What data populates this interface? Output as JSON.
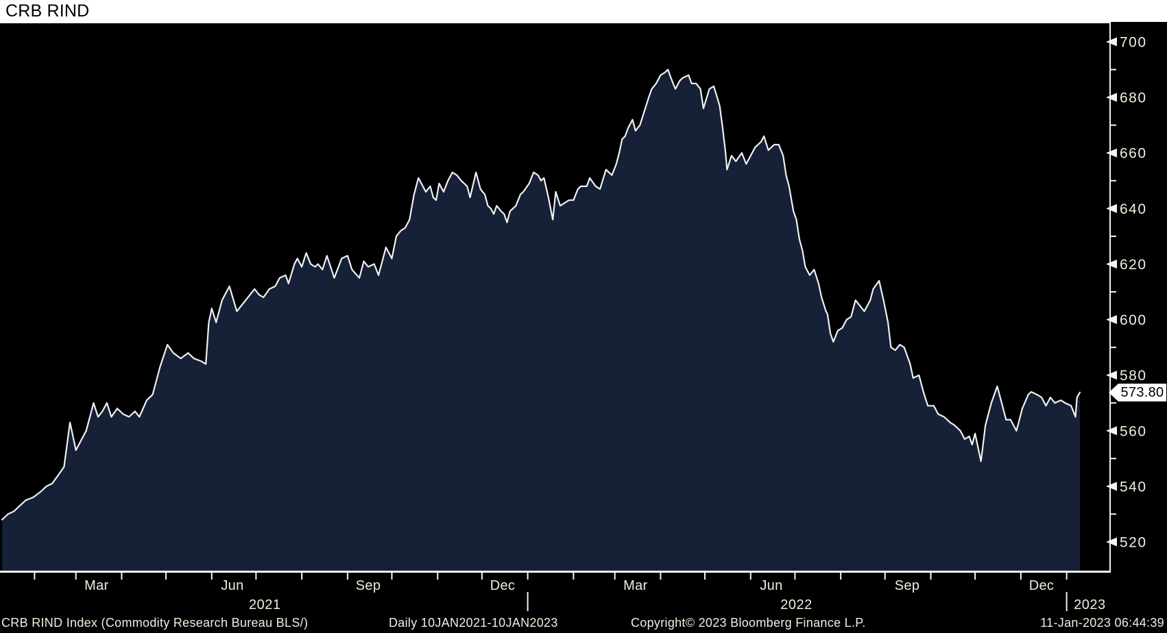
{
  "title": "CRB RIND",
  "colors": {
    "background": "#000000",
    "header_bg": "#ffffff",
    "title_text": "#000000",
    "area_fill": "#162137",
    "line": "#eef1f6",
    "axis": "#f4f4f4",
    "label_text": "#f2edde",
    "tag_bg": "#ffffff",
    "tag_text": "#000000"
  },
  "y_axis": {
    "label_min": 520,
    "label_max": 700,
    "major_step": 20,
    "minor_step": 10,
    "last_price_label": "573.80"
  },
  "x_axis": {
    "month_tick_days": [
      22,
      50,
      81,
      111,
      142,
      172,
      203,
      234,
      264,
      295,
      325,
      356,
      387,
      415,
      446,
      476,
      507,
      537,
      568,
      598,
      629,
      659,
      690,
      721
    ],
    "year_divider_days": [
      356,
      721
    ],
    "month_labels": [
      {
        "text": "Mar",
        "day": 64
      },
      {
        "text": "Jun",
        "day": 156
      },
      {
        "text": "Sep",
        "day": 248
      },
      {
        "text": "Dec",
        "day": 339
      },
      {
        "text": "Mar",
        "day": 429
      },
      {
        "text": "Jun",
        "day": 521
      },
      {
        "text": "Sep",
        "day": 613
      },
      {
        "text": "Dec",
        "day": 704
      }
    ],
    "year_labels": [
      {
        "text": "2021",
        "day": 178,
        "align": "middle"
      },
      {
        "text": "2022",
        "day": 538,
        "align": "middle"
      },
      {
        "text": "2023",
        "day": 724,
        "align": "start"
      }
    ]
  },
  "footer": {
    "description": "CRB RIND Index (Commodity Research Bureau BLS/)",
    "range": "Daily 10JAN2021-10JAN2023",
    "copyright": "Copyright© 2023 Bloomberg Finance L.P.",
    "timestamp": "11-Jan-2023 06:44:39"
  },
  "chart_data": {
    "type": "area",
    "title": "CRB RIND",
    "series_name": "CRB RIND Index (Commodity Research Bureau BLS/)",
    "frequency": "daily",
    "start_date": "2021-01-10",
    "end_date": "2023-01-10",
    "last_value": 573.8,
    "ylim": [
      509,
      707
    ],
    "yticks": [
      520,
      540,
      560,
      580,
      600,
      620,
      640,
      660,
      680,
      700
    ],
    "legend": "none",
    "grid": "off",
    "points_format": "[day_offset_from_2021-01-10, index_value]",
    "points": [
      [
        0,
        528
      ],
      [
        4,
        530
      ],
      [
        8,
        531
      ],
      [
        12,
        533
      ],
      [
        16,
        535
      ],
      [
        21,
        536
      ],
      [
        26,
        538
      ],
      [
        30,
        540
      ],
      [
        34,
        541
      ],
      [
        38,
        544
      ],
      [
        42,
        547
      ],
      [
        46,
        563
      ],
      [
        50,
        553
      ],
      [
        53,
        556
      ],
      [
        57,
        560
      ],
      [
        62,
        570
      ],
      [
        65,
        565
      ],
      [
        68,
        567
      ],
      [
        71,
        570
      ],
      [
        74,
        565
      ],
      [
        78,
        568
      ],
      [
        82,
        566
      ],
      [
        86,
        565
      ],
      [
        90,
        567
      ],
      [
        93,
        565
      ],
      [
        98,
        571
      ],
      [
        102,
        573
      ],
      [
        107,
        583
      ],
      [
        112,
        591
      ],
      [
        116,
        588
      ],
      [
        121,
        586
      ],
      [
        126,
        588
      ],
      [
        130,
        586
      ],
      [
        135,
        585
      ],
      [
        138,
        584
      ],
      [
        140,
        599
      ],
      [
        142,
        604
      ],
      [
        145,
        599
      ],
      [
        149,
        607
      ],
      [
        154,
        612
      ],
      [
        159,
        603
      ],
      [
        162,
        605
      ],
      [
        165,
        607
      ],
      [
        168,
        609
      ],
      [
        171,
        611
      ],
      [
        174,
        609
      ],
      [
        177,
        608
      ],
      [
        181,
        611
      ],
      [
        185,
        612
      ],
      [
        188,
        615
      ],
      [
        192,
        616
      ],
      [
        194,
        613
      ],
      [
        198,
        620
      ],
      [
        200,
        622
      ],
      [
        203,
        619
      ],
      [
        206,
        624
      ],
      [
        209,
        620
      ],
      [
        212,
        619
      ],
      [
        214,
        620
      ],
      [
        217,
        618
      ],
      [
        220,
        623
      ],
      [
        225,
        615
      ],
      [
        230,
        622
      ],
      [
        234,
        623
      ],
      [
        237,
        618
      ],
      [
        242,
        615
      ],
      [
        245,
        621
      ],
      [
        248,
        619
      ],
      [
        252,
        620
      ],
      [
        255,
        616
      ],
      [
        260,
        626
      ],
      [
        264,
        622
      ],
      [
        267,
        630
      ],
      [
        270,
        632
      ],
      [
        273,
        633
      ],
      [
        276,
        636
      ],
      [
        279,
        645
      ],
      [
        282,
        651
      ],
      [
        285,
        648
      ],
      [
        287,
        646
      ],
      [
        290,
        648
      ],
      [
        292,
        644
      ],
      [
        294,
        643
      ],
      [
        296,
        649
      ],
      [
        299,
        646
      ],
      [
        302,
        650
      ],
      [
        305,
        653
      ],
      [
        308,
        652
      ],
      [
        311,
        650
      ],
      [
        315,
        648
      ],
      [
        317,
        644
      ],
      [
        321,
        653
      ],
      [
        324,
        647
      ],
      [
        327,
        645
      ],
      [
        329,
        641
      ],
      [
        331,
        640
      ],
      [
        333,
        638
      ],
      [
        335,
        641
      ],
      [
        338,
        639
      ],
      [
        340,
        638
      ],
      [
        342,
        635
      ],
      [
        344,
        639
      ],
      [
        348,
        641
      ],
      [
        351,
        645
      ],
      [
        353,
        646
      ],
      [
        357,
        649
      ],
      [
        360,
        653
      ],
      [
        363,
        652
      ],
      [
        365,
        650
      ],
      [
        367,
        651
      ],
      [
        370,
        644
      ],
      [
        373,
        636
      ],
      [
        375,
        646
      ],
      [
        378,
        641
      ],
      [
        381,
        642
      ],
      [
        384,
        643
      ],
      [
        387,
        643
      ],
      [
        390,
        647
      ],
      [
        392,
        648
      ],
      [
        396,
        648
      ],
      [
        398,
        651
      ],
      [
        402,
        648
      ],
      [
        405,
        647
      ],
      [
        409,
        654
      ],
      [
        413,
        652
      ],
      [
        416,
        656
      ],
      [
        418,
        660
      ],
      [
        420,
        665
      ],
      [
        422,
        666
      ],
      [
        424,
        669
      ],
      [
        427,
        672
      ],
      [
        429,
        668
      ],
      [
        432,
        670
      ],
      [
        435,
        675
      ],
      [
        438,
        680
      ],
      [
        440,
        683
      ],
      [
        443,
        685
      ],
      [
        446,
        688
      ],
      [
        449,
        689
      ],
      [
        451,
        690
      ],
      [
        453,
        687
      ],
      [
        456,
        683
      ],
      [
        459,
        686
      ],
      [
        461,
        687
      ],
      [
        465,
        688
      ],
      [
        467,
        685
      ],
      [
        470,
        685
      ],
      [
        473,
        683
      ],
      [
        475,
        676
      ],
      [
        479,
        683
      ],
      [
        482,
        684
      ],
      [
        486,
        677
      ],
      [
        488,
        669
      ],
      [
        490,
        660
      ],
      [
        491,
        654
      ],
      [
        494,
        659
      ],
      [
        497,
        657
      ],
      [
        501,
        660
      ],
      [
        504,
        656
      ],
      [
        507,
        659
      ],
      [
        510,
        662
      ],
      [
        514,
        664
      ],
      [
        516,
        666
      ],
      [
        519,
        661
      ],
      [
        523,
        663
      ],
      [
        526,
        663
      ],
      [
        529,
        659
      ],
      [
        531,
        652
      ],
      [
        533,
        648
      ],
      [
        536,
        639
      ],
      [
        538,
        636
      ],
      [
        540,
        629
      ],
      [
        542,
        625
      ],
      [
        544,
        619
      ],
      [
        547,
        616
      ],
      [
        550,
        618
      ],
      [
        553,
        613
      ],
      [
        555,
        608
      ],
      [
        558,
        603
      ],
      [
        559,
        602
      ],
      [
        561,
        595
      ],
      [
        563,
        592
      ],
      [
        566,
        596
      ],
      [
        569,
        597
      ],
      [
        572,
        600
      ],
      [
        575,
        601
      ],
      [
        578,
        607
      ],
      [
        581,
        605
      ],
      [
        584,
        603
      ],
      [
        588,
        607
      ],
      [
        590,
        611
      ],
      [
        594,
        614
      ],
      [
        597,
        607
      ],
      [
        600,
        599
      ],
      [
        602,
        590
      ],
      [
        605,
        589
      ],
      [
        608,
        591
      ],
      [
        611,
        590
      ],
      [
        615,
        584
      ],
      [
        617,
        579
      ],
      [
        621,
        580
      ],
      [
        624,
        574
      ],
      [
        627,
        569
      ],
      [
        631,
        569
      ],
      [
        634,
        566
      ],
      [
        638,
        565
      ],
      [
        642,
        563
      ],
      [
        645,
        562
      ],
      [
        649,
        560
      ],
      [
        652,
        557
      ],
      [
        655,
        558
      ],
      [
        657,
        555
      ],
      [
        659,
        559
      ],
      [
        661,
        554
      ],
      [
        663,
        549
      ],
      [
        666,
        562
      ],
      [
        670,
        570
      ],
      [
        674,
        576
      ],
      [
        677,
        570
      ],
      [
        680,
        564
      ],
      [
        683,
        564
      ],
      [
        687,
        560
      ],
      [
        691,
        568
      ],
      [
        695,
        573
      ],
      [
        697,
        574
      ],
      [
        701,
        573
      ],
      [
        704,
        572
      ],
      [
        707,
        569
      ],
      [
        710,
        572
      ],
      [
        713,
        570
      ],
      [
        717,
        571
      ],
      [
        720,
        570
      ],
      [
        724,
        569
      ],
      [
        727,
        565
      ],
      [
        728,
        572
      ],
      [
        730,
        573.8
      ]
    ]
  }
}
